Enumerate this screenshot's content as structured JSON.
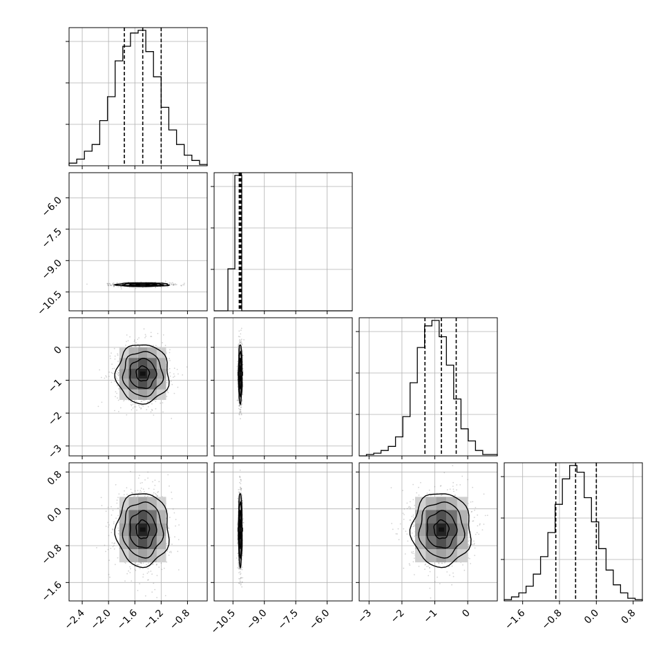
{
  "chart_data": {
    "type": "corner",
    "title": "",
    "grid": true,
    "params": [
      {
        "range": [
          -2.6,
          -0.5
        ],
        "ticks": [
          -2.4,
          -2.0,
          -1.6,
          -1.2,
          -0.8
        ],
        "tick_labels": [
          "−2.4",
          "−2.0",
          "−1.6",
          "−1.2",
          "−0.8"
        ],
        "quantiles": [
          -1.76,
          -1.48,
          -1.2
        ],
        "peak": -1.48,
        "sd": 0.2,
        "hist_counts": [
          2,
          5,
          11,
          16,
          34,
          52,
          79,
          90,
          100,
          102,
          86,
          67,
          44,
          27,
          16,
          8,
          4,
          1
        ]
      },
      {
        "range": [
          -11.4,
          -4.8
        ],
        "ticks": [
          -10.5,
          -9.0,
          -7.5,
          -6.0
        ],
        "tick_labels": [
          "−10.5",
          "−9.0",
          "−7.5",
          "−6.0"
        ],
        "quantiles": [
          -10.2,
          -10.15,
          -10.1
        ],
        "peak": -10.15,
        "sd": 0.045,
        "hist_counts": [
          0,
          0,
          31,
          100,
          0,
          0,
          0,
          0,
          0,
          0,
          0,
          0,
          0,
          0,
          0,
          0,
          0,
          0,
          0,
          0
        ]
      },
      {
        "range": [
          -3.3,
          0.9
        ],
        "ticks": [
          -3,
          -2,
          -1,
          0
        ],
        "tick_labels": [
          "−3",
          "−2",
          "−1",
          "0"
        ],
        "quantiles": [
          -1.3,
          -0.8,
          -0.35
        ],
        "peak": -0.8,
        "sd": 0.45,
        "hist_counts": [
          0,
          1,
          2,
          4,
          7,
          14,
          29,
          54,
          80,
          96,
          100,
          88,
          67,
          42,
          20,
          11,
          4,
          1,
          1
        ]
      },
      {
        "range": [
          -2.0,
          1.0
        ],
        "ticks": [
          -1.6,
          -0.8,
          0.0,
          0.8
        ],
        "tick_labels": [
          "−1.6",
          "−0.8",
          "0.0",
          "0.8"
        ],
        "quantiles": [
          -0.88,
          -0.45,
          0.0
        ],
        "peak": -0.45,
        "sd": 0.4,
        "hist_counts": [
          1,
          3,
          6,
          11,
          20,
          33,
          51,
          72,
          91,
          101,
          96,
          77,
          59,
          39,
          23,
          12,
          6,
          2,
          1
        ]
      }
    ],
    "pairs": [
      {
        "row": 1,
        "col": 0,
        "center": [
          -1.48,
          -10.15
        ]
      },
      {
        "row": 2,
        "col": 0,
        "center": [
          -1.48,
          -0.8
        ]
      },
      {
        "row": 2,
        "col": 1,
        "center": [
          -10.15,
          -0.8
        ]
      },
      {
        "row": 3,
        "col": 0,
        "center": [
          -1.48,
          -0.45
        ]
      },
      {
        "row": 3,
        "col": 1,
        "center": [
          -10.15,
          -0.45
        ]
      },
      {
        "row": 3,
        "col": 2,
        "center": [
          -0.8,
          -0.45
        ]
      }
    ],
    "contour_levels_sigma": [
      0.5,
      1.0,
      1.5,
      2.0
    ],
    "colors": {
      "line": "#000000",
      "grid": "#b0b0b0",
      "scatter": "#7f7f7f"
    }
  }
}
